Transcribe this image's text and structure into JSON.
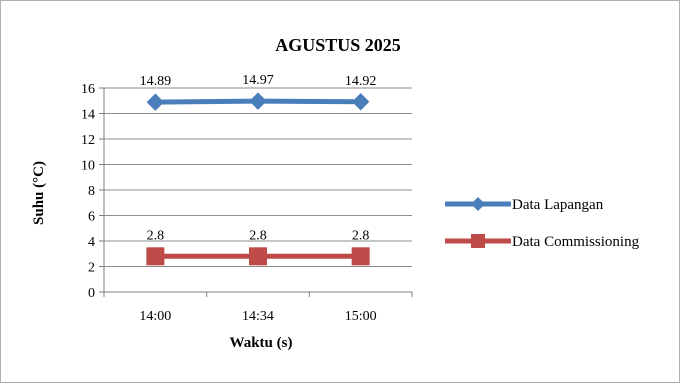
{
  "chart_data": {
    "type": "line",
    "title": "AGUSTUS 2025",
    "xlabel": "Waktu (s)",
    "ylabel": "Suhu (°C)",
    "categories": [
      "14:00",
      "14:34",
      "15:00"
    ],
    "ylim": [
      0,
      16
    ],
    "yticks": [
      "0",
      "2",
      "4",
      "6",
      "8",
      "10",
      "12",
      "14",
      "16"
    ],
    "grid": true,
    "legend_position": "right",
    "series": [
      {
        "name": "Data Lapangan",
        "values": [
          14.89,
          14.97,
          14.92
        ],
        "labels": [
          "14.89",
          "14.97",
          "14.92"
        ],
        "color": "#4a7ebb",
        "marker": "diamond"
      },
      {
        "name": "Data Commissioning",
        "values": [
          2.8,
          2.8,
          2.8
        ],
        "labels": [
          "2.8",
          "2.8",
          "2.8"
        ],
        "color": "#be4b48",
        "marker": "square"
      }
    ]
  }
}
